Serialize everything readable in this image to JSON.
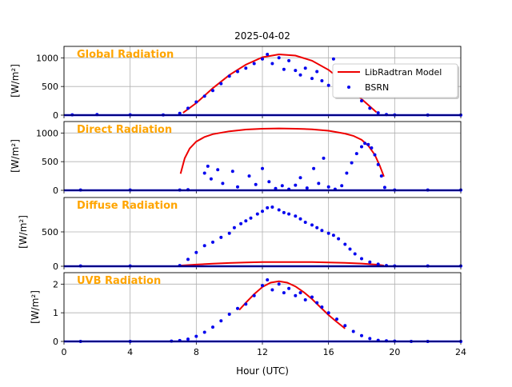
{
  "title": "2025-04-02",
  "xlabel": "Hour (UTC)",
  "ylabel_html": "[W/m²]",
  "legend": {
    "model_label": "LibRadtran Model",
    "obs_label": "BSRN",
    "placement": "top-right of first panel"
  },
  "colors": {
    "model": "#ee0000",
    "obs": "#0000ee",
    "panel_label": "#ffa500",
    "grid": "#b0b0b0"
  },
  "chart_data": [
    {
      "type": "line+scatter",
      "panel_label": "Global Radiation",
      "ylabel": "[W/m²]",
      "xlim": [
        0,
        24
      ],
      "ylim": [
        0,
        1200
      ],
      "yticks": [
        0,
        500,
        1000
      ],
      "grid": true,
      "series": [
        {
          "name": "LibRadtran Model",
          "kind": "line",
          "x": [
            7.2,
            8,
            9,
            10,
            11,
            12,
            13,
            14,
            15,
            16,
            17,
            18,
            18.9
          ],
          "y": [
            40,
            210,
            470,
            700,
            880,
            1010,
            1060,
            1040,
            950,
            790,
            560,
            280,
            50
          ]
        },
        {
          "name": "BSRN",
          "kind": "scatter",
          "x": [
            0.5,
            2,
            4,
            6,
            7,
            7.5,
            8,
            8.5,
            9,
            9.5,
            10,
            10.5,
            11,
            11.5,
            12,
            12.3,
            12.6,
            13,
            13.3,
            13.6,
            14,
            14.3,
            14.6,
            15,
            15.3,
            15.6,
            16,
            16.3,
            16.6,
            17,
            17.3,
            17.6,
            18,
            18.5,
            19,
            19.5,
            20,
            22,
            24
          ],
          "y": [
            5,
            10,
            5,
            3,
            30,
            120,
            230,
            330,
            430,
            550,
            680,
            760,
            820,
            900,
            980,
            1060,
            900,
            1000,
            800,
            950,
            780,
            700,
            820,
            640,
            760,
            600,
            520,
            980,
            470,
            650,
            380,
            420,
            250,
            120,
            40,
            10,
            3,
            2,
            2
          ]
        }
      ]
    },
    {
      "type": "line+scatter",
      "panel_label": "Direct Radiation",
      "ylabel": "[W/m²]",
      "xlim": [
        0,
        24
      ],
      "ylim": [
        0,
        1200
      ],
      "yticks": [
        0,
        500,
        1000
      ],
      "grid": true,
      "series": [
        {
          "name": "LibRadtran Model",
          "kind": "line",
          "x": [
            7.05,
            7.3,
            7.6,
            8,
            8.5,
            9,
            10,
            11,
            12,
            13,
            14,
            15,
            16,
            17,
            17.5,
            18,
            18.4,
            18.8,
            19.1,
            19.35
          ],
          "y": [
            290,
            560,
            730,
            850,
            930,
            980,
            1030,
            1060,
            1075,
            1080,
            1075,
            1065,
            1040,
            990,
            950,
            880,
            780,
            620,
            430,
            240
          ]
        },
        {
          "name": "BSRN",
          "kind": "scatter",
          "x": [
            1,
            4,
            7,
            7.5,
            8.5,
            8.7,
            8.9,
            9.3,
            9.6,
            10.2,
            10.5,
            11.2,
            11.6,
            12,
            12.4,
            12.8,
            13.2,
            13.6,
            14,
            14.3,
            14.7,
            15.1,
            15.4,
            15.7,
            16,
            16.4,
            16.8,
            17.1,
            17.4,
            17.7,
            18,
            18.2,
            18.4,
            18.6,
            18.8,
            19,
            19.2,
            19.4,
            20,
            22,
            24
          ],
          "y": [
            5,
            5,
            5,
            10,
            300,
            420,
            200,
            360,
            120,
            330,
            60,
            250,
            100,
            380,
            150,
            30,
            80,
            20,
            90,
            220,
            40,
            380,
            120,
            560,
            60,
            20,
            80,
            300,
            480,
            640,
            760,
            820,
            800,
            740,
            620,
            450,
            250,
            50,
            5,
            5,
            5
          ]
        }
      ]
    },
    {
      "type": "line+scatter",
      "panel_label": "Diffuse Radiation",
      "ylabel": "[W/m²]",
      "xlim": [
        0,
        24
      ],
      "ylim": [
        0,
        1000
      ],
      "yticks": [
        0,
        500
      ],
      "grid": true,
      "series": [
        {
          "name": "LibRadtran Model",
          "kind": "line",
          "x": [
            7.05,
            8,
            9,
            10,
            11,
            12,
            13,
            14,
            15,
            16,
            17,
            18,
            19,
            19.35
          ],
          "y": [
            10,
            25,
            38,
            48,
            55,
            60,
            62,
            62,
            60,
            56,
            50,
            40,
            22,
            10
          ]
        },
        {
          "name": "BSRN",
          "kind": "scatter",
          "x": [
            1,
            4,
            7,
            7.5,
            8,
            8.5,
            9,
            9.5,
            10,
            10.3,
            10.7,
            11,
            11.3,
            11.7,
            12,
            12.3,
            12.6,
            13,
            13.3,
            13.6,
            14,
            14.3,
            14.6,
            15,
            15.3,
            15.6,
            16,
            16.3,
            16.6,
            17,
            17.3,
            17.6,
            18,
            18.5,
            19,
            19.5,
            20,
            22,
            24
          ],
          "y": [
            5,
            5,
            10,
            100,
            200,
            300,
            350,
            420,
            480,
            560,
            620,
            660,
            700,
            760,
            800,
            850,
            860,
            820,
            780,
            760,
            730,
            690,
            640,
            600,
            560,
            520,
            480,
            450,
            400,
            320,
            250,
            180,
            110,
            60,
            30,
            10,
            5,
            5,
            5
          ]
        }
      ]
    },
    {
      "type": "line+scatter",
      "panel_label": "UVB Radiation",
      "ylabel": "[W/m²]",
      "xlim": [
        0,
        24
      ],
      "ylim": [
        0,
        2.4
      ],
      "yticks": [
        0,
        1,
        2
      ],
      "grid": true,
      "series": [
        {
          "name": "LibRadtran Model",
          "kind": "line",
          "x": [
            10.6,
            11,
            11.5,
            12,
            12.5,
            13,
            13.5,
            14,
            14.5,
            15,
            15.5,
            16,
            16.5,
            17
          ],
          "y": [
            1.1,
            1.35,
            1.65,
            1.9,
            2.05,
            2.1,
            2.05,
            1.92,
            1.72,
            1.48,
            1.2,
            0.92,
            0.68,
            0.45
          ]
        },
        {
          "name": "BSRN",
          "kind": "scatter",
          "x": [
            1,
            4,
            6.5,
            7,
            7.5,
            8,
            8.5,
            9,
            9.5,
            10,
            10.5,
            11,
            11.5,
            12,
            12.3,
            12.6,
            13,
            13.3,
            13.6,
            14,
            14.3,
            14.6,
            15,
            15.3,
            15.6,
            16,
            16.5,
            17,
            17.5,
            18,
            18.5,
            19,
            19.5,
            20,
            21,
            22,
            24
          ],
          "y": [
            0,
            0,
            0.01,
            0.03,
            0.08,
            0.18,
            0.32,
            0.5,
            0.72,
            0.95,
            1.15,
            1.3,
            1.6,
            1.95,
            2.15,
            1.8,
            2.0,
            1.7,
            1.85,
            1.6,
            1.7,
            1.45,
            1.55,
            1.35,
            1.2,
            1.0,
            0.78,
            0.55,
            0.35,
            0.2,
            0.1,
            0.04,
            0.02,
            0.01,
            0,
            0,
            0
          ]
        }
      ]
    }
  ],
  "xticks": [
    0,
    4,
    8,
    12,
    16,
    20,
    24
  ]
}
